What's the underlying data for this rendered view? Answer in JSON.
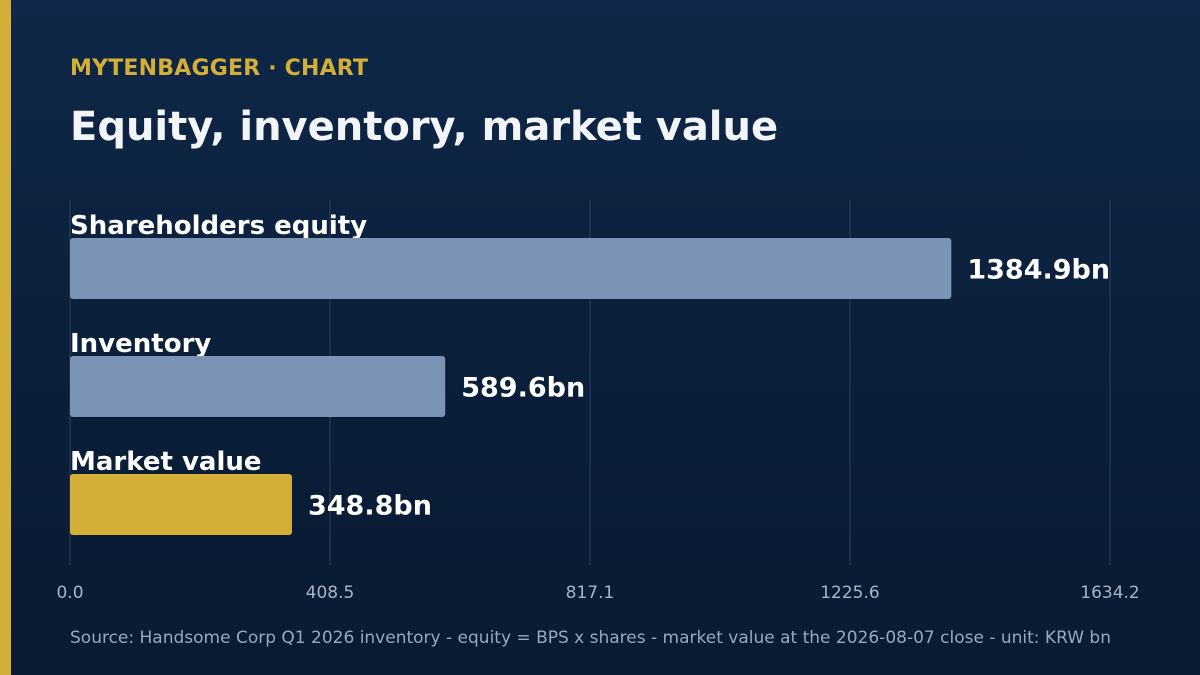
{
  "header": {
    "kicker": "MYTENBAGGER · CHART",
    "title": "Equity, inventory, market value"
  },
  "footer": {
    "source": "Source: Handsome Corp Q1 2026 inventory - equity = BPS x shares - market value at the 2026-08-07 close - unit: KRW bn"
  },
  "colors": {
    "accent": "#d4af37",
    "bar_default": "#7b93b5",
    "bar_highlight": "#d4af37",
    "grid": "#2c4261",
    "tick_text": "#a8b3c5"
  },
  "chart_data": {
    "type": "bar",
    "orientation": "horizontal",
    "categories": [
      "Shareholders equity",
      "Inventory",
      "Market value"
    ],
    "values": [
      1384.9,
      589.6,
      348.8
    ],
    "value_labels": [
      "1384.9bn",
      "589.6bn",
      "348.8bn"
    ],
    "highlight": [
      "Market value"
    ],
    "xlim": [
      0,
      1634.2
    ],
    "x_ticks": [
      0.0,
      408.5,
      817.1,
      1225.6,
      1634.2
    ],
    "x_tick_labels": [
      "0.0",
      "408.5",
      "817.1",
      "1225.6",
      "1634.2"
    ],
    "grid": true,
    "legend": "none"
  }
}
